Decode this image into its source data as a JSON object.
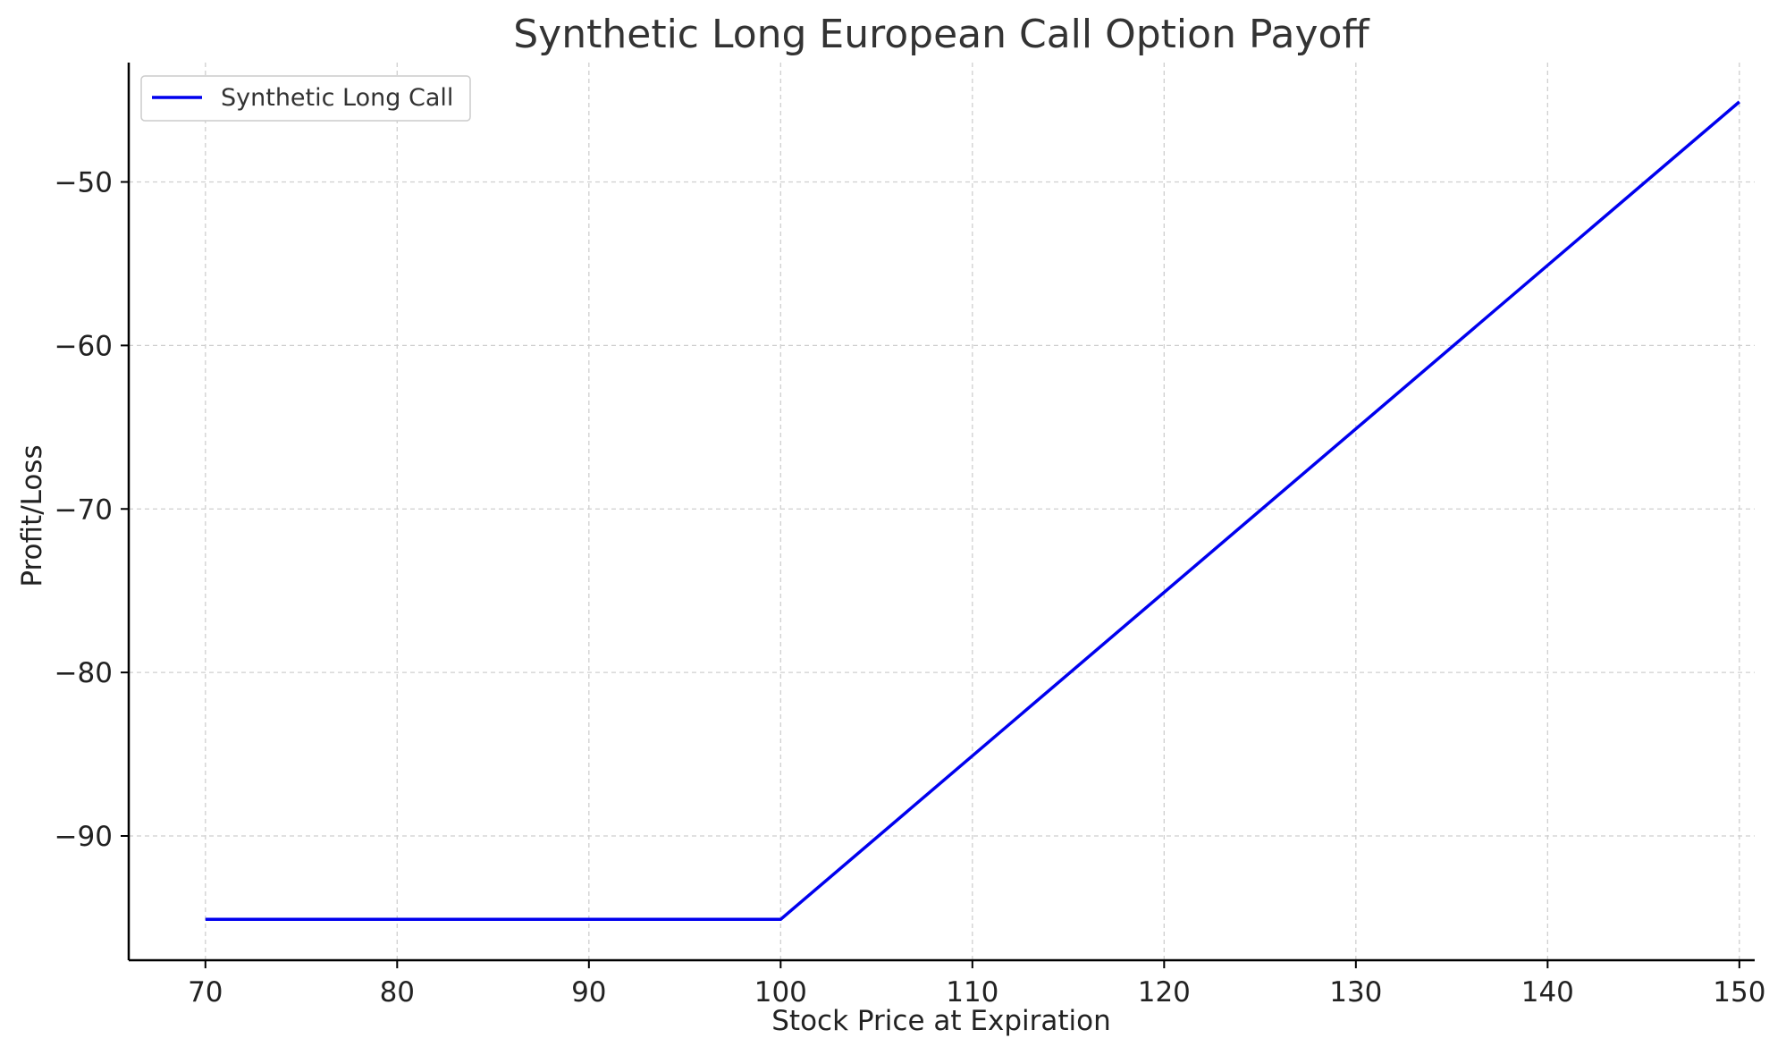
{
  "chart_data": {
    "type": "line",
    "title": "Synthetic Long European Call Option Payoff",
    "xlabel": "Stock Price at Expiration",
    "ylabel": "Profit/Loss",
    "xlim": [
      66,
      150.8
    ],
    "ylim": [
      -97.6,
      -42.7
    ],
    "xticks": [
      70,
      80,
      90,
      100,
      110,
      120,
      130,
      140,
      150
    ],
    "yticks": [
      -90,
      -80,
      -70,
      -60,
      -50
    ],
    "xtick_labels": [
      "70",
      "80",
      "90",
      "100",
      "110",
      "120",
      "130",
      "140",
      "150"
    ],
    "ytick_labels": [
      "−90",
      "−80",
      "−70",
      "−60",
      "−50"
    ],
    "grid": true,
    "legend_position": "top-left",
    "series": [
      {
        "name": "Synthetic Long Call",
        "color": "#0000ee",
        "x": [
          70,
          100,
          150
        ],
        "y": [
          -95.1,
          -95.1,
          -45.1
        ]
      }
    ]
  }
}
